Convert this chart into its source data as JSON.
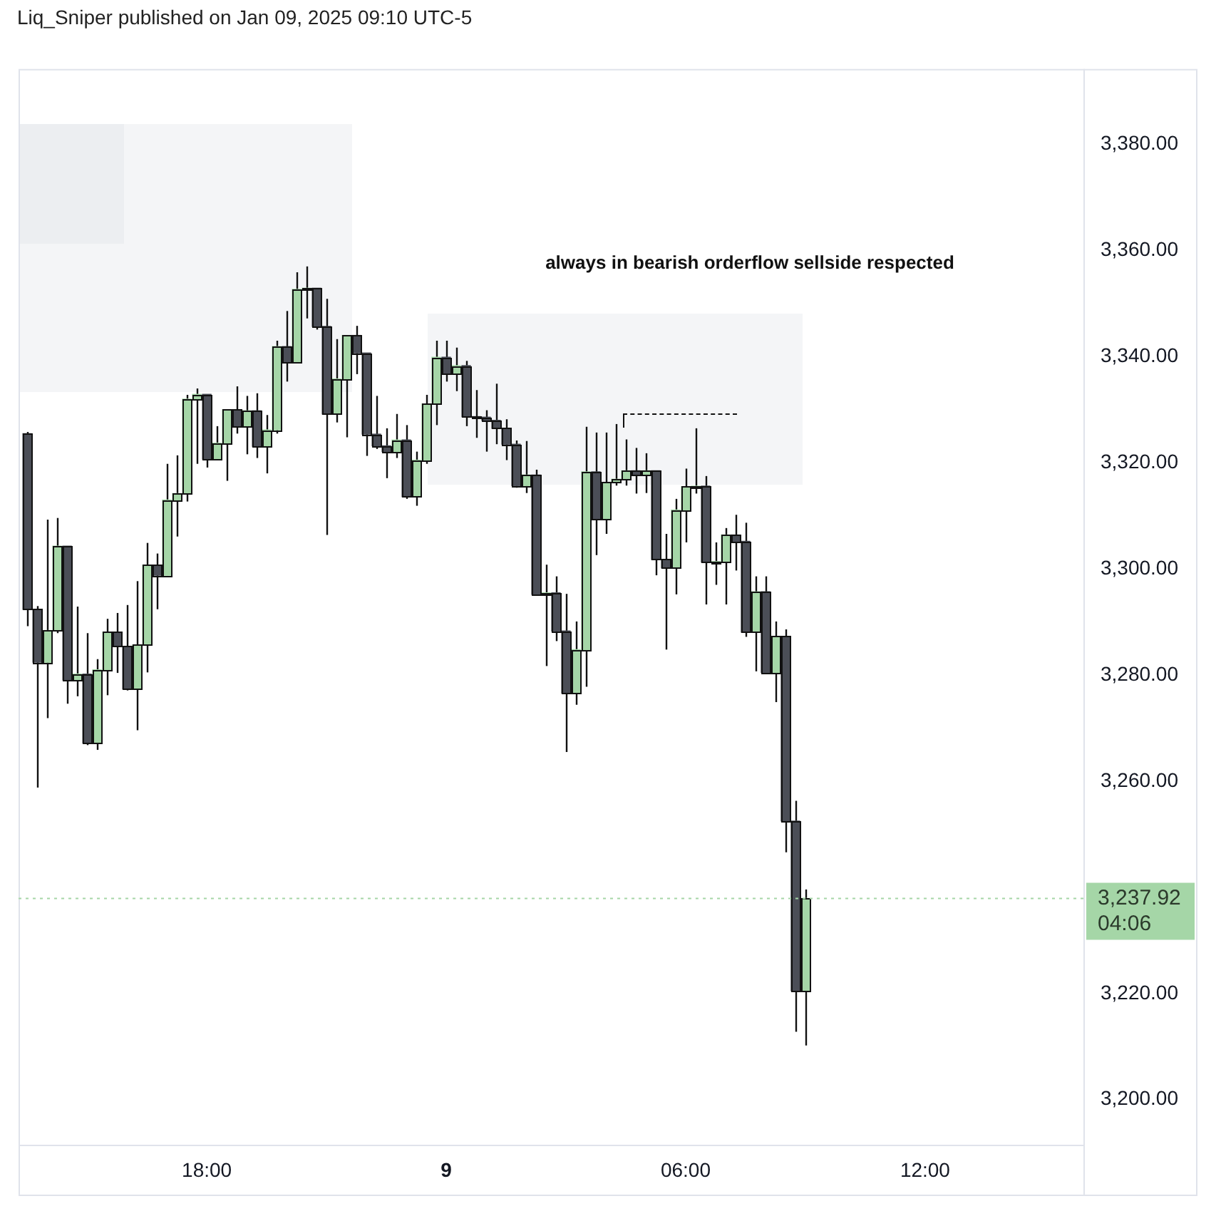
{
  "chart_data": {
    "type": "candlestick",
    "title": "Liq_Sniper published on Jan 09, 2025 09:10 UTC-5",
    "x": [
      "2025-01-08T13:30",
      "2025-01-08T13:45",
      "2025-01-08T14:00",
      "2025-01-08T14:15",
      "2025-01-08T14:30",
      "2025-01-08T14:45",
      "2025-01-08T15:00",
      "2025-01-08T15:15",
      "2025-01-08T15:30",
      "2025-01-08T15:45",
      "2025-01-08T16:00",
      "2025-01-08T16:15",
      "2025-01-08T16:30",
      "2025-01-08T16:45",
      "2025-01-08T17:00",
      "2025-01-08T17:15",
      "2025-01-08T17:30",
      "2025-01-08T17:45",
      "2025-01-08T18:00",
      "2025-01-08T18:15",
      "2025-01-08T18:30",
      "2025-01-08T18:45",
      "2025-01-08T19:00",
      "2025-01-08T19:15",
      "2025-01-08T19:30",
      "2025-01-08T19:45",
      "2025-01-08T20:00",
      "2025-01-08T20:15",
      "2025-01-08T20:30",
      "2025-01-08T20:45",
      "2025-01-08T21:00",
      "2025-01-08T21:15",
      "2025-01-08T21:30",
      "2025-01-08T21:45",
      "2025-01-08T22:00",
      "2025-01-08T22:15",
      "2025-01-08T22:30",
      "2025-01-08T22:45",
      "2025-01-08T23:00",
      "2025-01-08T23:15",
      "2025-01-08T23:30",
      "2025-01-08T23:45",
      "2025-01-09T00:00",
      "2025-01-09T00:15",
      "2025-01-09T00:30",
      "2025-01-09T00:45",
      "2025-01-09T01:00",
      "2025-01-09T01:15",
      "2025-01-09T01:30",
      "2025-01-09T01:45",
      "2025-01-09T02:00",
      "2025-01-09T02:15",
      "2025-01-09T02:30",
      "2025-01-09T02:45",
      "2025-01-09T03:00",
      "2025-01-09T03:15",
      "2025-01-09T03:30",
      "2025-01-09T03:45",
      "2025-01-09T04:00",
      "2025-01-09T04:15",
      "2025-01-09T04:30",
      "2025-01-09T04:45",
      "2025-01-09T05:00",
      "2025-01-09T05:15",
      "2025-01-09T05:30",
      "2025-01-09T05:45",
      "2025-01-09T06:00",
      "2025-01-09T06:15",
      "2025-01-09T06:30",
      "2025-01-09T06:45",
      "2025-01-09T07:00",
      "2025-01-09T07:15",
      "2025-01-09T07:30",
      "2025-01-09T07:45",
      "2025-01-09T08:00",
      "2025-01-09T08:15",
      "2025-01-09T08:30",
      "2025-01-09T08:45",
      "2025-01-09T09:00"
    ],
    "ohlc": [
      [
        3325.5,
        3325.8,
        3289.2,
        3292.4
      ],
      [
        3292.4,
        3293,
        3258.8,
        3282.4
      ],
      [
        3282.4,
        3309.3,
        3271.9,
        3288.4
      ],
      [
        3288.4,
        3309.6,
        3287.9,
        3304.3
      ],
      [
        3304.3,
        3304.3,
        3274.6,
        3279.1
      ],
      [
        3279.1,
        3292.9,
        3276,
        3280.2
      ],
      [
        3280.2,
        3287.9,
        3266.8,
        3267.2
      ],
      [
        3267.2,
        3283,
        3265.9,
        3281
      ],
      [
        3281,
        3290.6,
        3276.2,
        3288.1
      ],
      [
        3288.1,
        3291.7,
        3280.4,
        3285.4
      ],
      [
        3285.4,
        3293.2,
        3277.1,
        3277.4
      ],
      [
        3277.4,
        3297.7,
        3269.6,
        3285.7
      ],
      [
        3285.7,
        3304.9,
        3280.5,
        3300.7
      ],
      [
        3300.7,
        3302.9,
        3292.4,
        3298.8
      ],
      [
        3298.8,
        3319.8,
        3298.8,
        3313
      ],
      [
        3313,
        3321.4,
        3306.1,
        3314.2
      ],
      [
        3314.2,
        3332.8,
        3312.7,
        3332
      ],
      [
        3332,
        3334,
        3319.8,
        3332.9
      ],
      [
        3332.9,
        3332.9,
        3319.1,
        3320.7
      ],
      [
        3320.7,
        3326.9,
        3320.7,
        3323.7
      ],
      [
        3323.7,
        3330,
        3316.6,
        3330
      ],
      [
        3330,
        3334.4,
        3325.5,
        3326.9
      ],
      [
        3326.9,
        3332.6,
        3321.6,
        3329.8
      ],
      [
        3329.8,
        3333.1,
        3320.9,
        3323.1
      ],
      [
        3323.1,
        3329,
        3318,
        3326.2
      ],
      [
        3326.2,
        3343,
        3325.5,
        3341.9
      ],
      [
        3341.9,
        3348.6,
        3335.3,
        3339
      ],
      [
        3339,
        3355.9,
        3339,
        3352.7
      ],
      [
        3352.7,
        3357,
        3347.2,
        3352.9
      ],
      [
        3352.9,
        3352.9,
        3345.1,
        3345.7
      ],
      [
        3345.7,
        3350.9,
        3306.4,
        3329.2
      ],
      [
        3329.2,
        3343.3,
        3327.6,
        3335.8
      ],
      [
        3335.8,
        3344,
        3324.8,
        3344
      ],
      [
        3344,
        3345.8,
        3336.7,
        3340.7
      ],
      [
        3340.7,
        3340.7,
        3321.3,
        3325.4
      ],
      [
        3325.4,
        3332.6,
        3322.6,
        3323.2
      ],
      [
        3323.2,
        3326.5,
        3317.1,
        3322.1
      ],
      [
        3322.1,
        3329.2,
        3320.9,
        3324.3
      ],
      [
        3324.3,
        3327.1,
        3313.2,
        3313.6
      ],
      [
        3313.6,
        3322.1,
        3311.9,
        3320.5
      ],
      [
        3320.5,
        3332.8,
        3319.8,
        3331.1
      ],
      [
        3331.1,
        3343,
        3327.1,
        3339.9
      ],
      [
        3339.9,
        3343,
        3335.3,
        3336.9
      ],
      [
        3336.9,
        3341.7,
        3333.5,
        3338.3
      ],
      [
        3338.3,
        3339.2,
        3326.9,
        3328.7
      ],
      [
        3328.7,
        3333.7,
        3324.7,
        3328.6
      ],
      [
        3328.6,
        3329.9,
        3322.1,
        3328
      ],
      [
        3328,
        3334.9,
        3323.5,
        3326.5
      ],
      [
        3326.5,
        3328.2,
        3320.5,
        3323.5
      ],
      [
        3323.5,
        3324.2,
        3315.3,
        3315.7
      ],
      [
        3315.7,
        3324.1,
        3314.3,
        3317.7
      ],
      [
        3317.7,
        3318.7,
        3295.2,
        3295.2
      ],
      [
        3295.2,
        3300.8,
        3281.7,
        3295.5
      ],
      [
        3295.5,
        3298.6,
        3286.4,
        3288.3
      ],
      [
        3288.3,
        3295.3,
        3265.5,
        3276.6
      ],
      [
        3276.6,
        3290.1,
        3274.4,
        3284.8
      ],
      [
        3284.8,
        3326.8,
        3277.8,
        3318.3
      ],
      [
        3318.3,
        3325.7,
        3302.6,
        3309.5
      ],
      [
        3309.5,
        3325.7,
        3306.6,
        3316.3
      ],
      [
        3316.3,
        3327.3,
        3315.7,
        3316.9
      ],
      [
        3316.9,
        3324.4,
        3315.7,
        3318.5
      ],
      [
        3318.5,
        3322.8,
        3314.2,
        3317.7
      ],
      [
        3317.7,
        3321.8,
        3314.3,
        3318.5
      ],
      [
        3318.5,
        3318.5,
        3298.8,
        3301.8
      ],
      [
        3301.8,
        3306.6,
        3284.8,
        3300.2
      ],
      [
        3300.2,
        3313.2,
        3295.2,
        3311.1
      ],
      [
        3311.1,
        3318.9,
        3305,
        3315.5
      ],
      [
        3315.5,
        3326.5,
        3314.2,
        3315.6
      ],
      [
        3315.6,
        3317.5,
        3293.3,
        3301.3
      ],
      [
        3301.3,
        3305,
        3297,
        3301.4
      ],
      [
        3301.4,
        3307.7,
        3293.3,
        3306.4
      ],
      [
        3306.4,
        3310.2,
        3299.7,
        3305.2
      ],
      [
        3305.2,
        3308.7,
        3287.2,
        3288.1
      ],
      [
        3288.1,
        3298.6,
        3280.7,
        3295.7
      ],
      [
        3295.7,
        3298.6,
        3280.5,
        3280.5
      ],
      [
        3280.5,
        3290.1,
        3274.9,
        3287.3
      ],
      [
        3287.3,
        3288.6,
        3246.6,
        3252.5
      ],
      [
        3252.5,
        3256.3,
        3212.8,
        3220.5
      ],
      [
        3220.5,
        3239.6,
        3210.2,
        3237.92
      ]
    ],
    "colors": [
      "#4b4e57",
      "#4b4e57",
      "#a5d6a7",
      "#a5d6a7",
      "#4b4e57",
      "#a5d6a7",
      "#4b4e57",
      "#a5d6a7",
      "#a5d6a7",
      "#4b4e57",
      "#4b4e57",
      "#a5d6a7",
      "#a5d6a7",
      "#4b4e57",
      "#a5d6a7",
      "#a5d6a7",
      "#a5d6a7",
      "#a5d6a7",
      "#4b4e57",
      "#a5d6a7",
      "#a5d6a7",
      "#4b4e57",
      "#a5d6a7",
      "#4b4e57",
      "#a5d6a7",
      "#a5d6a7",
      "#4b4e57",
      "#a5d6a7",
      "#a5d6a7",
      "#4b4e57",
      "#4b4e57",
      "#a5d6a7",
      "#a5d6a7",
      "#4b4e57",
      "#4b4e57",
      "#4b4e57",
      "#4b4e57",
      "#a5d6a7",
      "#4b4e57",
      "#a5d6a7",
      "#a5d6a7",
      "#a5d6a7",
      "#4b4e57",
      "#a5d6a7",
      "#4b4e57",
      "#4b4e57",
      "#4b4e57",
      "#4b4e57",
      "#4b4e57",
      "#4b4e57",
      "#a5d6a7",
      "#4b4e57",
      "#a5d6a7",
      "#4b4e57",
      "#4b4e57",
      "#a5d6a7",
      "#a5d6a7",
      "#4b4e57",
      "#a5d6a7",
      "#a5d6a7",
      "#a5d6a7",
      "#4b4e57",
      "#a5d6a7",
      "#4b4e57",
      "#4b4e57",
      "#a5d6a7",
      "#a5d6a7",
      "#a5d6a7",
      "#4b4e57",
      "#a5d6a7",
      "#a5d6a7",
      "#4b4e57",
      "#4b4e57",
      "#a5d6a7",
      "#4b4e57",
      "#a5d6a7",
      "#4b4e57",
      "#4b4e57",
      "#a5d6a7"
    ],
    "xlim": [
      "2025-01-08T13:17",
      "2025-01-09T15:58"
    ],
    "xticks": [
      {
        "value": "2025-01-08T18:00",
        "label": "18:00"
      },
      {
        "value": "2025-01-09T00:00",
        "label": "9"
      },
      {
        "value": "2025-01-09T06:00",
        "label": "06:00"
      },
      {
        "value": "2025-01-09T12:00",
        "label": "12:00"
      }
    ],
    "ylim": [
      3191.5,
      3394.2
    ],
    "yticks": [
      {
        "value": 3200,
        "label": "3,200.00"
      },
      {
        "value": 3220,
        "label": "3,220.00"
      },
      {
        "value": 3260,
        "label": "3,260.00"
      },
      {
        "value": 3280,
        "label": "3,280.00"
      },
      {
        "value": 3300,
        "label": "3,300.00"
      },
      {
        "value": 3320,
        "label": "3,320.00"
      },
      {
        "value": 3340,
        "label": "3,340.00"
      },
      {
        "value": 3360,
        "label": "3,360.00"
      },
      {
        "value": 3380,
        "label": "3,380.00"
      }
    ],
    "ref_lines": [
      {
        "axis": "y",
        "value": 3237.92,
        "label": "3,237.92",
        "color": "#a5d6a7",
        "line_style": "dotted"
      }
    ],
    "annotations": [
      "always in bearish orderflow sellside respected",
      "04:06"
    ]
  }
}
